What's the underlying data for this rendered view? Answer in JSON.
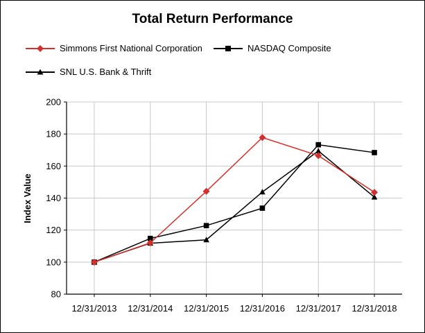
{
  "colors": {
    "simmons": "#d0312d",
    "nasdaq": "#000000",
    "snl": "#000000",
    "grid": "#c8c8c8",
    "axis": "#000000"
  },
  "chart_data": {
    "type": "line",
    "title": "Total Return Performance",
    "xlabel": "",
    "ylabel": "Index Value",
    "categories": [
      "12/31/2013",
      "12/31/2014",
      "12/31/2015",
      "12/31/2016",
      "12/31/2017",
      "12/31/2018"
    ],
    "ylim": [
      80,
      200
    ],
    "yticks": [
      "80",
      "100",
      "120",
      "140",
      "160",
      "180",
      "200"
    ],
    "grid": true,
    "legend_position": "top-left",
    "series": [
      {
        "name": "Simmons First National Corporation",
        "marker": "diamond",
        "color": "#d0312d",
        "values": [
          100,
          112,
          144.2,
          177.8,
          166.5,
          143.6
        ]
      },
      {
        "name": "NASDAQ Composite",
        "marker": "square",
        "color": "#000000",
        "values": [
          100,
          114.8,
          122.8,
          133.7,
          173.3,
          168.4
        ]
      },
      {
        "name": "SNL U.S. Bank & Thrift",
        "marker": "triangle",
        "color": "#000000",
        "values": [
          100,
          111.8,
          113.9,
          143.8,
          169.4,
          140.6
        ]
      }
    ]
  }
}
